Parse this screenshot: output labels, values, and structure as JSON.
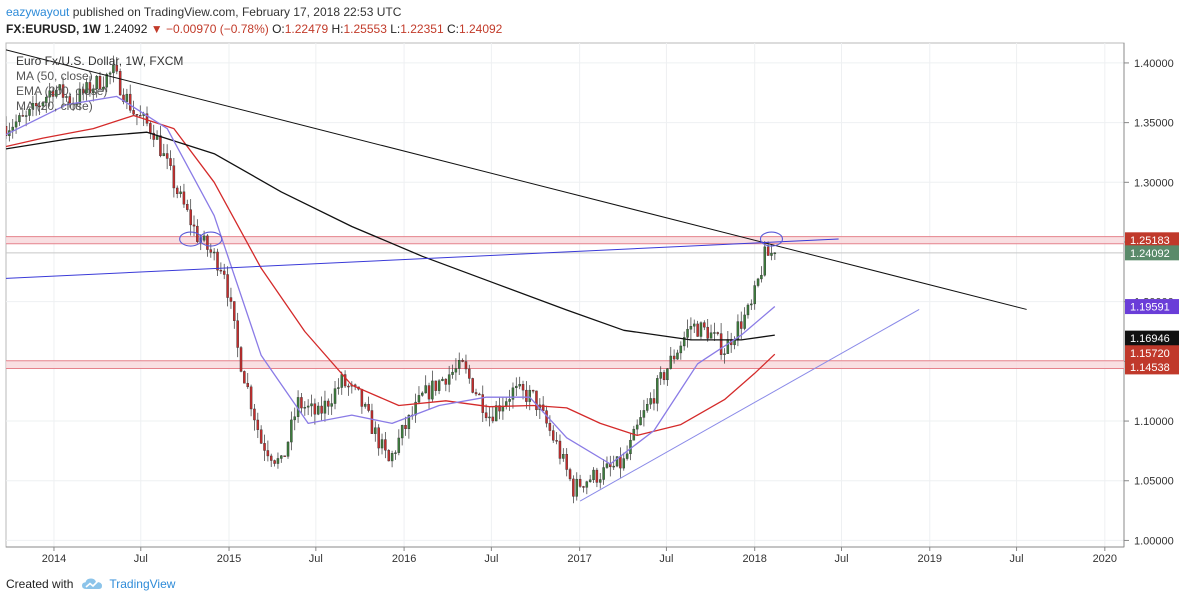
{
  "header": {
    "user": "eazywayout",
    "published": "published on TradingView.com, February 17, 2018 22:53 UTC"
  },
  "quote": {
    "symbol": "FX:EURUSD, 1W",
    "last": "1.24092",
    "change": "−0.00970 (−0.78%)",
    "open_label": "O:",
    "open": "1.22479",
    "high_label": "H:",
    "high": "1.25553",
    "low_label": "L:",
    "low": "1.22351",
    "close_label": "C:",
    "close": "1.24092"
  },
  "legend": [
    "Euro Fx/U.S. Dollar, 1W, FXCM",
    "MA (50, close)",
    "EMA (200, close)",
    "MA (20, close)"
  ],
  "footer": {
    "created_with": "Created with",
    "brand": "TradingView"
  },
  "colors": {
    "up": "#3c7d3c",
    "down": "#c62c2c",
    "ma50": "#d42a2a",
    "ema200": "#111111",
    "ma20": "#8a7be6",
    "blue_line": "#3a3ad8",
    "band": "#e5828c"
  },
  "chart_data": {
    "type": "candlestick",
    "title": "Euro Fx/U.S. Dollar, 1W, FXCM",
    "xlim": [
      "2013-09-23",
      "2020-02-10"
    ],
    "ylim": [
      0.9945,
      1.4167
    ],
    "y_ticks": [
      "1.40000",
      "1.35000",
      "1.30000",
      "1.25000",
      "1.20000",
      "1.15000",
      "1.10000",
      "1.05000",
      "1.00000"
    ],
    "x_ticks": [
      {
        "date": "2014-01-01",
        "label": "2014"
      },
      {
        "date": "2014-07-01",
        "label": "Jul"
      },
      {
        "date": "2015-01-01",
        "label": "2015"
      },
      {
        "date": "2015-07-01",
        "label": "Jul"
      },
      {
        "date": "2016-01-01",
        "label": "2016"
      },
      {
        "date": "2016-07-01",
        "label": "Jul"
      },
      {
        "date": "2017-01-01",
        "label": "2017"
      },
      {
        "date": "2017-07-01",
        "label": "Jul"
      },
      {
        "date": "2018-01-01",
        "label": "2018"
      },
      {
        "date": "2018-07-01",
        "label": "Jul"
      },
      {
        "date": "2019-01-01",
        "label": "2019"
      },
      {
        "date": "2019-07-01",
        "label": "Jul"
      },
      {
        "date": "2020-01-01",
        "label": "2020"
      }
    ],
    "price_path": [
      [
        "2013-09-23",
        1.347
      ],
      [
        "2013-11-04",
        1.353
      ],
      [
        "2013-12-30",
        1.379
      ],
      [
        "2014-02-10",
        1.368
      ],
      [
        "2014-03-24",
        1.381
      ],
      [
        "2014-05-05",
        1.392
      ],
      [
        "2014-06-16",
        1.359
      ],
      [
        "2014-07-28",
        1.343
      ],
      [
        "2014-09-15",
        1.292
      ],
      [
        "2014-10-27",
        1.255
      ],
      [
        "2014-12-22",
        1.227
      ],
      [
        "2015-01-19",
        1.16
      ],
      [
        "2015-03-09",
        1.083
      ],
      [
        "2015-04-20",
        1.063
      ],
      [
        "2015-05-25",
        1.115
      ],
      [
        "2015-07-06",
        1.105
      ],
      [
        "2015-08-24",
        1.133
      ],
      [
        "2015-09-28",
        1.12
      ],
      [
        "2015-11-30",
        1.065
      ],
      [
        "2015-12-28",
        1.09
      ],
      [
        "2016-02-08",
        1.12
      ],
      [
        "2016-03-28",
        1.138
      ],
      [
        "2016-05-02",
        1.145
      ],
      [
        "2016-06-27",
        1.105
      ],
      [
        "2016-08-15",
        1.125
      ],
      [
        "2016-09-26",
        1.12
      ],
      [
        "2016-11-14",
        1.08
      ],
      [
        "2016-12-19",
        1.043
      ],
      [
        "2017-01-09",
        1.05
      ],
      [
        "2017-02-20",
        1.057
      ],
      [
        "2017-04-03",
        1.065
      ],
      [
        "2017-05-08",
        1.1
      ],
      [
        "2017-07-03",
        1.145
      ],
      [
        "2017-08-21",
        1.18
      ],
      [
        "2017-09-25",
        1.175
      ],
      [
        "2017-10-30",
        1.16
      ],
      [
        "2017-11-20",
        1.175
      ],
      [
        "2017-12-25",
        1.195
      ],
      [
        "2018-01-22",
        1.238
      ],
      [
        "2018-02-12",
        1.241
      ]
    ],
    "candles_count": 230,
    "last_close": 1.24092,
    "series": [
      {
        "name": "MA (50, close)",
        "points": [
          [
            "2013-09-23",
            1.33
          ],
          [
            "2013-12-09",
            1.337
          ],
          [
            "2014-03-24",
            1.345
          ],
          [
            "2014-06-16",
            1.356
          ],
          [
            "2014-09-08",
            1.345
          ],
          [
            "2014-12-01",
            1.3
          ],
          [
            "2015-03-09",
            1.228
          ],
          [
            "2015-06-08",
            1.175
          ],
          [
            "2015-09-14",
            1.13
          ],
          [
            "2015-12-21",
            1.113
          ],
          [
            "2016-03-28",
            1.117
          ],
          [
            "2016-06-27",
            1.112
          ],
          [
            "2016-09-26",
            1.113
          ],
          [
            "2016-12-05",
            1.111
          ],
          [
            "2017-02-13",
            1.098
          ],
          [
            "2017-05-01",
            1.088
          ],
          [
            "2017-07-31",
            1.097
          ],
          [
            "2017-10-30",
            1.118
          ],
          [
            "2018-01-01",
            1.14
          ],
          [
            "2018-02-12",
            1.156
          ]
        ]
      },
      {
        "name": "EMA (200, close)",
        "points": [
          [
            "2013-09-23",
            1.328
          ],
          [
            "2014-02-10",
            1.337
          ],
          [
            "2014-07-14",
            1.342
          ],
          [
            "2014-12-01",
            1.324
          ],
          [
            "2015-04-20",
            1.292
          ],
          [
            "2015-09-14",
            1.263
          ],
          [
            "2016-02-08",
            1.238
          ],
          [
            "2016-07-11",
            1.215
          ],
          [
            "2016-12-05",
            1.193
          ],
          [
            "2017-04-03",
            1.176
          ],
          [
            "2017-08-21",
            1.168
          ],
          [
            "2017-12-04",
            1.168
          ],
          [
            "2018-02-12",
            1.172
          ]
        ]
      },
      {
        "name": "MA (20, close)",
        "points": [
          [
            "2013-09-23",
            1.34
          ],
          [
            "2014-01-27",
            1.365
          ],
          [
            "2014-05-12",
            1.372
          ],
          [
            "2014-08-25",
            1.345
          ],
          [
            "2014-12-01",
            1.272
          ],
          [
            "2015-03-09",
            1.155
          ],
          [
            "2015-06-15",
            1.098
          ],
          [
            "2015-09-14",
            1.105
          ],
          [
            "2015-12-07",
            1.098
          ],
          [
            "2016-03-14",
            1.113
          ],
          [
            "2016-06-20",
            1.12
          ],
          [
            "2016-09-19",
            1.12
          ],
          [
            "2016-12-05",
            1.086
          ],
          [
            "2017-03-06",
            1.064
          ],
          [
            "2017-06-05",
            1.092
          ],
          [
            "2017-09-04",
            1.148
          ],
          [
            "2017-12-04",
            1.172
          ],
          [
            "2018-02-12",
            1.196
          ]
        ]
      }
    ],
    "price_labels": [
      {
        "value": 1.25183,
        "label": "1.25183",
        "bg": "#c0392b",
        "fg": "#ffffff"
      },
      {
        "value": 1.24092,
        "label": "1.24092",
        "bg": "#5a8a6a",
        "fg": "#ffffff"
      },
      {
        "value": 1.19591,
        "label": "1.19591",
        "bg": "#6a3dd8",
        "fg": "#ffffff"
      },
      {
        "value": 1.16946,
        "label": "1.16946",
        "bg": "#111111",
        "fg": "#ffffff"
      },
      {
        "value": 1.1572,
        "label": "1.15720",
        "bg": "#c0392b",
        "fg": "#ffffff"
      },
      {
        "value": 1.14538,
        "label": "1.14538",
        "bg": "#c0392b",
        "fg": "#ffffff"
      }
    ],
    "horizontal_bands": [
      {
        "low": 1.2485,
        "high": 1.2545
      },
      {
        "low": 1.144,
        "high": 1.1505
      }
    ],
    "trendlines": [
      {
        "color": "#111111",
        "from": [
          "2013-09-23",
          1.411
        ],
        "to": [
          "2019-07-22",
          1.1935
        ]
      },
      {
        "color": "#3a3ad8",
        "from": [
          "2013-09-23",
          1.2195
        ],
        "to": [
          "2018-06-25",
          1.2525
        ]
      },
      {
        "color": "#8a8ae8",
        "from": [
          "2017-01-02",
          1.033
        ],
        "to": [
          "2018-12-10",
          1.1935
        ]
      }
    ],
    "ellipses": [
      {
        "date": "2014-10-13",
        "value": 1.2525
      },
      {
        "date": "2014-11-24",
        "value": 1.2525
      },
      {
        "date": "2018-02-05",
        "value": 1.2525
      }
    ]
  }
}
